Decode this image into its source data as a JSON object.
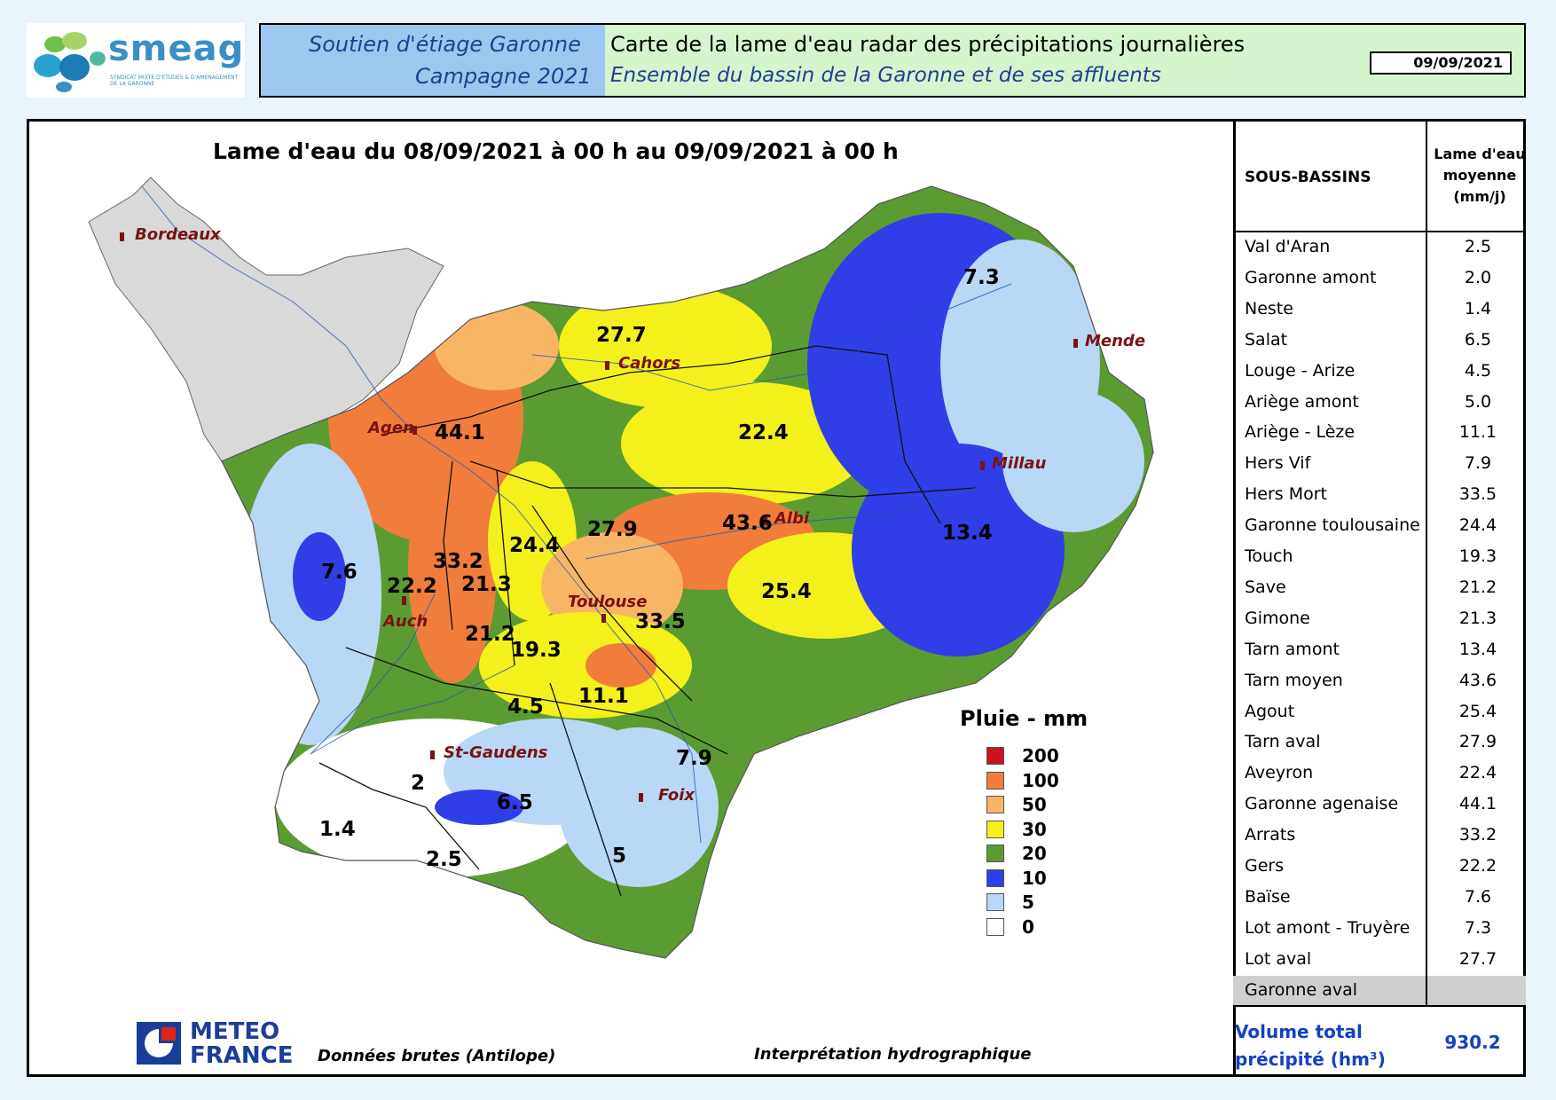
{
  "logo": {
    "name": "smeag",
    "tagline": "SYNDICAT MIXTE D'ETUDES & D'AMENAGEMENT DE LA GARONNE"
  },
  "header": {
    "left_line1": "Soutien d'étiage Garonne",
    "left_line2": "Campagne 2021",
    "title": "Carte de la lame d'eau radar des précipitations journalières",
    "subtitle": "Ensemble du bassin de la Garonne et de ses affluents",
    "date": "09/09/2021"
  },
  "map": {
    "title": "Lame d'eau du 08/09/2021 à 00 h au 09/09/2021 à 00 h",
    "cities": [
      "Bordeaux",
      "Agen",
      "Cahors",
      "Mende",
      "Millau",
      "Albi",
      "Toulouse",
      "Auch",
      "St-Gaudens",
      "Foix"
    ],
    "values": [
      "44.1",
      "27.7",
      "22.4",
      "7.3",
      "13.4",
      "43.6",
      "27.9",
      "24.4",
      "33.2",
      "21.3",
      "22.2",
      "7.6",
      "25.4",
      "33.5",
      "21.2",
      "19.3",
      "4.5",
      "11.1",
      "7.9",
      "2",
      "6.5",
      "1.4",
      "2.5",
      "5"
    ]
  },
  "legend": {
    "title": "Pluie - mm",
    "items": [
      {
        "label": "200",
        "color": "#c8141e"
      },
      {
        "label": "100",
        "color": "#f07d3c"
      },
      {
        "label": "50",
        "color": "#f9b566"
      },
      {
        "label": "30",
        "color": "#f3f01c"
      },
      {
        "label": "20",
        "color": "#5a9c32"
      },
      {
        "label": "10",
        "color": "#2f3ee6"
      },
      {
        "label": "5",
        "color": "#b9d8f6"
      },
      {
        "label": "0",
        "color": "#ffffff"
      }
    ]
  },
  "table": {
    "col1": "SOUS-BASSINS",
    "col2": [
      "Lame d'eau",
      "moyenne",
      "(mm/j)"
    ],
    "rows": [
      {
        "name": "Val d'Aran",
        "value": "2.5"
      },
      {
        "name": "Garonne amont",
        "value": "2.0"
      },
      {
        "name": "Neste",
        "value": "1.4"
      },
      {
        "name": "Salat",
        "value": "6.5"
      },
      {
        "name": "Louge - Arize",
        "value": "4.5"
      },
      {
        "name": "Ariège amont",
        "value": "5.0"
      },
      {
        "name": "Ariège - Lèze",
        "value": "11.1"
      },
      {
        "name": "Hers Vif",
        "value": "7.9"
      },
      {
        "name": "Hers Mort",
        "value": "33.5"
      },
      {
        "name": "Garonne toulousaine",
        "value": "24.4"
      },
      {
        "name": "Touch",
        "value": "19.3"
      },
      {
        "name": "Save",
        "value": "21.2"
      },
      {
        "name": "Gimone",
        "value": "21.3"
      },
      {
        "name": "Tarn amont",
        "value": "13.4"
      },
      {
        "name": "Tarn moyen",
        "value": "43.6"
      },
      {
        "name": "Agout",
        "value": "25.4"
      },
      {
        "name": "Tarn aval",
        "value": "27.9"
      },
      {
        "name": "Aveyron",
        "value": "22.4"
      },
      {
        "name": "Garonne agenaise",
        "value": "44.1"
      },
      {
        "name": "Arrats",
        "value": "33.2"
      },
      {
        "name": "Gers",
        "value": "22.2"
      },
      {
        "name": "Baïse",
        "value": "7.6"
      },
      {
        "name": "Lot amont - Truyère",
        "value": "7.3"
      },
      {
        "name": "Lot aval",
        "value": "27.7"
      },
      {
        "name": "Garonne aval",
        "value": ""
      }
    ],
    "volume_label_1": "Volume total",
    "volume_label_2": "précipité (hm³)",
    "volume_value": "930.2"
  },
  "footer": {
    "brand_1": "METEO",
    "brand_2": "FRANCE",
    "source": "Données brutes (Antilope)",
    "interpretation": "Interprétation hydrographique"
  }
}
